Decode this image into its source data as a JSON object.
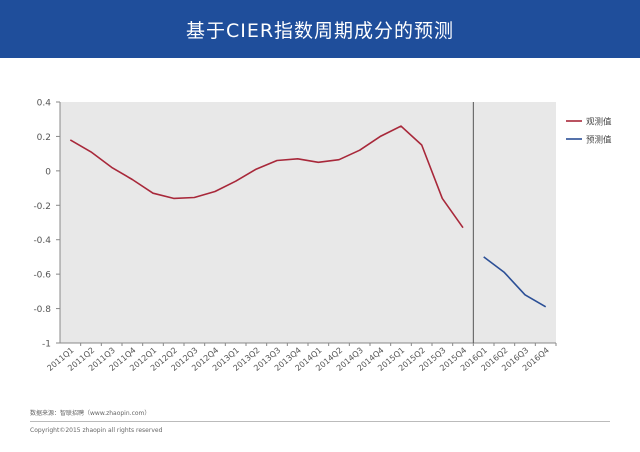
{
  "header": {
    "title": "基于CIER指数周期成分的预测"
  },
  "footer": {
    "source": "数据来源：智联招聘（www.zhaopin.com）",
    "copyright": "Copyright©2015 zhaopin all rights reserved"
  },
  "colors": {
    "banner": "#1f4e9b",
    "observed": "#a8283a",
    "forecast": "#2b4f96",
    "plot_bg": "#e8e8e8",
    "divider": "#555555"
  },
  "chart_data": {
    "type": "line",
    "categories": [
      "2011Q1",
      "2011Q2",
      "2011Q3",
      "2011Q4",
      "2012Q1",
      "2012Q2",
      "2012Q3",
      "2012Q4",
      "2013Q1",
      "2013Q2",
      "2013Q3",
      "2013Q4",
      "2014Q1",
      "2014Q2",
      "2014Q3",
      "2014Q4",
      "2015Q1",
      "2015Q2",
      "2015Q3",
      "2015Q4",
      "2016Q1",
      "2016Q2",
      "2016Q3",
      "2016Q4"
    ],
    "yticks": [
      "0.4",
      "0.2",
      "0",
      "-0.2",
      "-0.4",
      "-0.6",
      "-0.8",
      "-1"
    ],
    "ylim": [
      -1,
      0.4
    ],
    "grid": false,
    "legend_position": "right",
    "series": [
      {
        "name": "观测值",
        "values": [
          0.18,
          0.11,
          0.02,
          -0.05,
          -0.13,
          -0.16,
          -0.155,
          -0.12,
          -0.06,
          0.01,
          0.06,
          0.07,
          0.05,
          0.065,
          0.12,
          0.2,
          0.26,
          0.15,
          -0.16,
          -0.33,
          null,
          null,
          null,
          null
        ]
      },
      {
        "name": "预测值",
        "values": [
          null,
          null,
          null,
          null,
          null,
          null,
          null,
          null,
          null,
          null,
          null,
          null,
          null,
          null,
          null,
          null,
          null,
          null,
          null,
          null,
          -0.5,
          -0.59,
          -0.72,
          -0.79
        ]
      }
    ]
  }
}
